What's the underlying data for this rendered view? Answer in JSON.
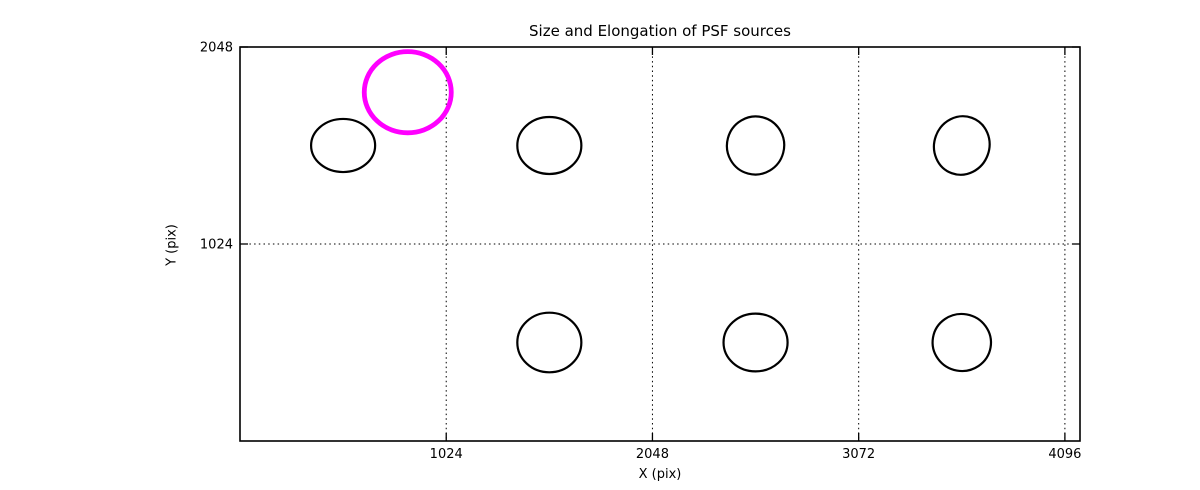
{
  "chart_data": {
    "type": "scatter",
    "title": "Size and Elongation of PSF sources",
    "xlabel": "X (pix)",
    "ylabel": "Y (pix)",
    "xlim": [
      0,
      4171
    ],
    "ylim": [
      0,
      2048
    ],
    "x_ticks": [
      1024,
      2048,
      3072,
      4096
    ],
    "y_ticks": [
      1024,
      2048
    ],
    "grid": {
      "visible": true,
      "style": "dotted",
      "color": "#000000"
    },
    "legend": "none",
    "axis_color": "#000000",
    "background_color": "#ffffff",
    "ellipses": [
      {
        "x": 512,
        "y": 1536,
        "rx": 159,
        "ry": 138,
        "angle_deg": 0,
        "color": "#000000",
        "line_width": 2.2,
        "role": "psf-source"
      },
      {
        "x": 1536,
        "y": 1536,
        "rx": 159,
        "ry": 148,
        "angle_deg": 0,
        "color": "#000000",
        "line_width": 2.2,
        "role": "psf-source"
      },
      {
        "x": 2560,
        "y": 1536,
        "rx": 142,
        "ry": 151,
        "angle_deg": 15,
        "color": "#000000",
        "line_width": 2.2,
        "role": "psf-source"
      },
      {
        "x": 3584,
        "y": 1536,
        "rx": 137,
        "ry": 153,
        "angle_deg": 20,
        "color": "#000000",
        "line_width": 2.2,
        "role": "psf-source"
      },
      {
        "x": 1536,
        "y": 512,
        "rx": 159,
        "ry": 155,
        "angle_deg": 0,
        "color": "#000000",
        "line_width": 2.2,
        "role": "psf-source"
      },
      {
        "x": 2560,
        "y": 512,
        "rx": 159,
        "ry": 150,
        "angle_deg": 0,
        "color": "#000000",
        "line_width": 2.2,
        "role": "psf-source"
      },
      {
        "x": 3584,
        "y": 512,
        "rx": 145,
        "ry": 148,
        "angle_deg": 10,
        "color": "#000000",
        "line_width": 2.2,
        "role": "psf-source"
      },
      {
        "x": 833,
        "y": 1813,
        "rx": 216,
        "ry": 211,
        "angle_deg": 0,
        "color": "#ff00ff",
        "line_width": 4.8,
        "role": "highlighted-source"
      }
    ]
  }
}
